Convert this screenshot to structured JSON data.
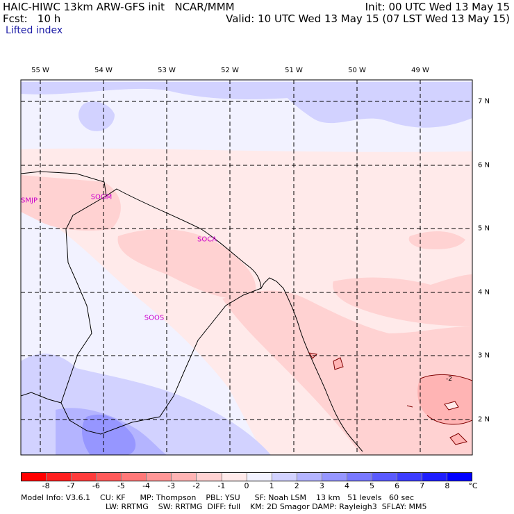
{
  "header": {
    "model": "HAIC-HIWC 13km ARW-GFS init   NCAR/MMM",
    "fcst": "Fcst:   10 h",
    "field": "Lifted index",
    "init": "Init: 00 UTC Wed 13 May 15",
    "valid": "Valid: 10 UTC Wed 13 May 15 (07 LST Wed 13 May 15)"
  },
  "map": {
    "lon_labels": [
      "55 W",
      "54 W",
      "53 W",
      "52 W",
      "51 W",
      "50 W",
      "49 W"
    ],
    "lat_labels": [
      "7 N",
      "6 N",
      "5 N",
      "4 N",
      "3 N",
      "2 N"
    ],
    "stations": [
      "SMJP",
      "SOGM",
      "SOCA",
      "SOOS"
    ],
    "contour_label": "-2"
  },
  "colorbar": {
    "labels": [
      "-8",
      "-7",
      "-6",
      "-5",
      "-4",
      "-3",
      "-2",
      "-1",
      "0",
      "1",
      "2",
      "3",
      "4",
      "5",
      "6",
      "7",
      "8"
    ],
    "unit": "°C",
    "colors": [
      "#ff0000",
      "#ff1f1f",
      "#ff3c3c",
      "#ff5a5a",
      "#ff7878",
      "#ff9696",
      "#ffb4b4",
      "#ffd2d2",
      "#ffeaea",
      "#f2f2ff",
      "#d2d2ff",
      "#b4b4ff",
      "#9696ff",
      "#7878ff",
      "#5a5aff",
      "#3c3cff",
      "#1e1eff",
      "#0000ff"
    ]
  },
  "footer": {
    "line1": "Model Info: V3.6.1    CU: KF      MP: Thompson    PBL: YSU      SF: Noah LSM    13 km   51 levels   60 sec",
    "line2": "LW: RRTMG    SW: RRTMG  DIFF: full    KM: 2D Smagor DAMP: Rayleigh3  SFLAY: MM5"
  }
}
